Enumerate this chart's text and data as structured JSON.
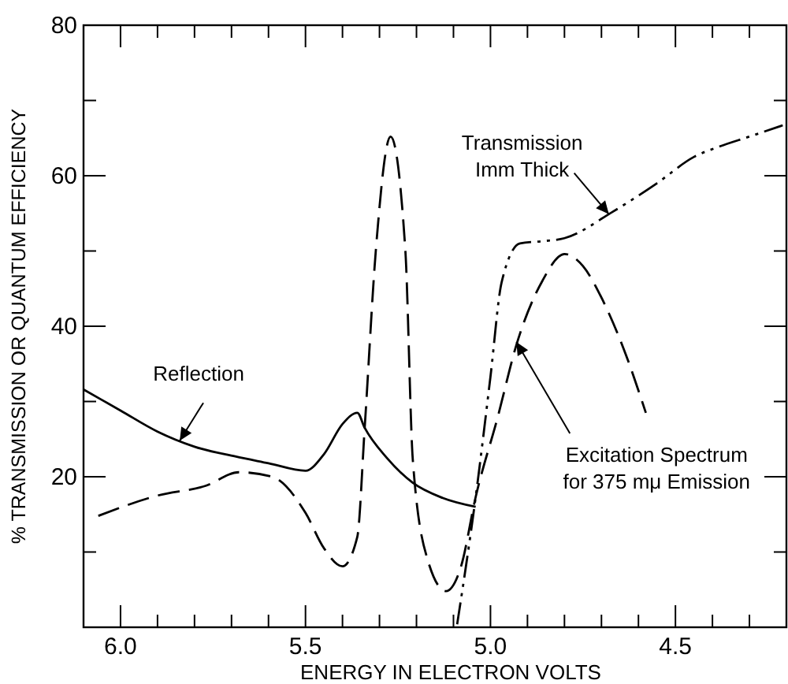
{
  "chart_data": {
    "type": "line",
    "xlabel": "ENERGY IN ELECTRON VOLTS",
    "ylabel": "% TRANSMISSION OR QUANTUM EFFICIENCY",
    "xlim": [
      6.1,
      4.2
    ],
    "xticks": [
      {
        "value": 6.1,
        "label": null
      },
      {
        "value": 6,
        "label": "6.0"
      },
      {
        "value": 5.9,
        "label": null
      },
      {
        "value": 5.8,
        "label": null
      },
      {
        "value": 5.7,
        "label": null
      },
      {
        "value": 5.6,
        "label": null
      },
      5.5,
      {
        "value": 5.4,
        "label": null
      },
      {
        "value": 5.3,
        "label": null
      },
      {
        "value": 5.2,
        "label": null
      },
      {
        "value": 5.1,
        "label": null
      },
      {
        "value": 5,
        "label": "5.0"
      },
      {
        "value": 4.9,
        "label": null
      },
      {
        "value": 4.8,
        "label": null
      },
      {
        "value": 4.7,
        "label": null
      },
      {
        "value": 4.6,
        "label": null
      },
      4.5,
      {
        "value": 4.4,
        "label": null
      },
      {
        "value": 4.3,
        "label": null
      }
    ],
    "ylim": [
      0,
      80
    ],
    "yticks": [
      {
        "value": 10,
        "label": null
      },
      20,
      {
        "value": 30,
        "label": null
      },
      40,
      {
        "value": 50,
        "label": null
      },
      60,
      {
        "value": 70,
        "label": null
      },
      80
    ],
    "grid": false,
    "series": [
      {
        "color": "#000000",
        "line_style": "solid",
        "x": [
          6.1,
          6.0,
          5.9,
          5.8,
          5.69,
          5.6,
          5.5,
          5.45,
          5.4,
          5.36,
          5.34,
          5.28,
          5.21,
          5.13,
          5.04
        ],
        "values": [
          31.6,
          28.8,
          26,
          24,
          22.7,
          21.8,
          20.8,
          23,
          27,
          28.5,
          26.5,
          22.5,
          19.2,
          17.2,
          16
        ]
      },
      {
        "color": "#000000",
        "line_style": "dashed",
        "x": [
          6.06,
          5.9,
          5.77,
          5.68,
          5.59,
          5.5,
          5.45,
          5.4,
          5.36,
          5.34,
          5.31,
          5.27,
          5.23,
          5.21,
          5.17,
          5.12,
          5.08,
          5.04,
          4.98,
          4.93,
          4.86,
          4.8,
          4.75,
          4.7,
          4.64,
          4.58
        ],
        "values": [
          14.8,
          17.5,
          18.8,
          20.6,
          20,
          15.2,
          10.5,
          8.1,
          12,
          26.5,
          50,
          65.2,
          50,
          22.3,
          9,
          4.8,
          8,
          17.3,
          28,
          37.5,
          46,
          49.6,
          48,
          43.8,
          37,
          28.5
        ]
      },
      {
        "color": "#000000",
        "line_style": "dashdot",
        "x": [
          5.09,
          5.04,
          5.0,
          4.97,
          4.92,
          4.86,
          4.8,
          4.67,
          4.55,
          4.45,
          4.38,
          4.3,
          4.21
        ],
        "values": [
          0.4,
          17.3,
          33.3,
          45.8,
          51,
          51.3,
          51.7,
          55.2,
          59,
          62.5,
          63.9,
          65.2,
          66.7
        ]
      }
    ],
    "annotations": [
      {
        "text": "Reflection",
        "x": 5.84,
        "y": 24.8
      },
      {
        "text": "Transmission\nImm Thick",
        "x": 4.68,
        "y": 54.9
      },
      {
        "text": "Excitation Spectrum\nfor 375 mμ Emission",
        "x": 4.93,
        "y": 37.9
      }
    ]
  }
}
